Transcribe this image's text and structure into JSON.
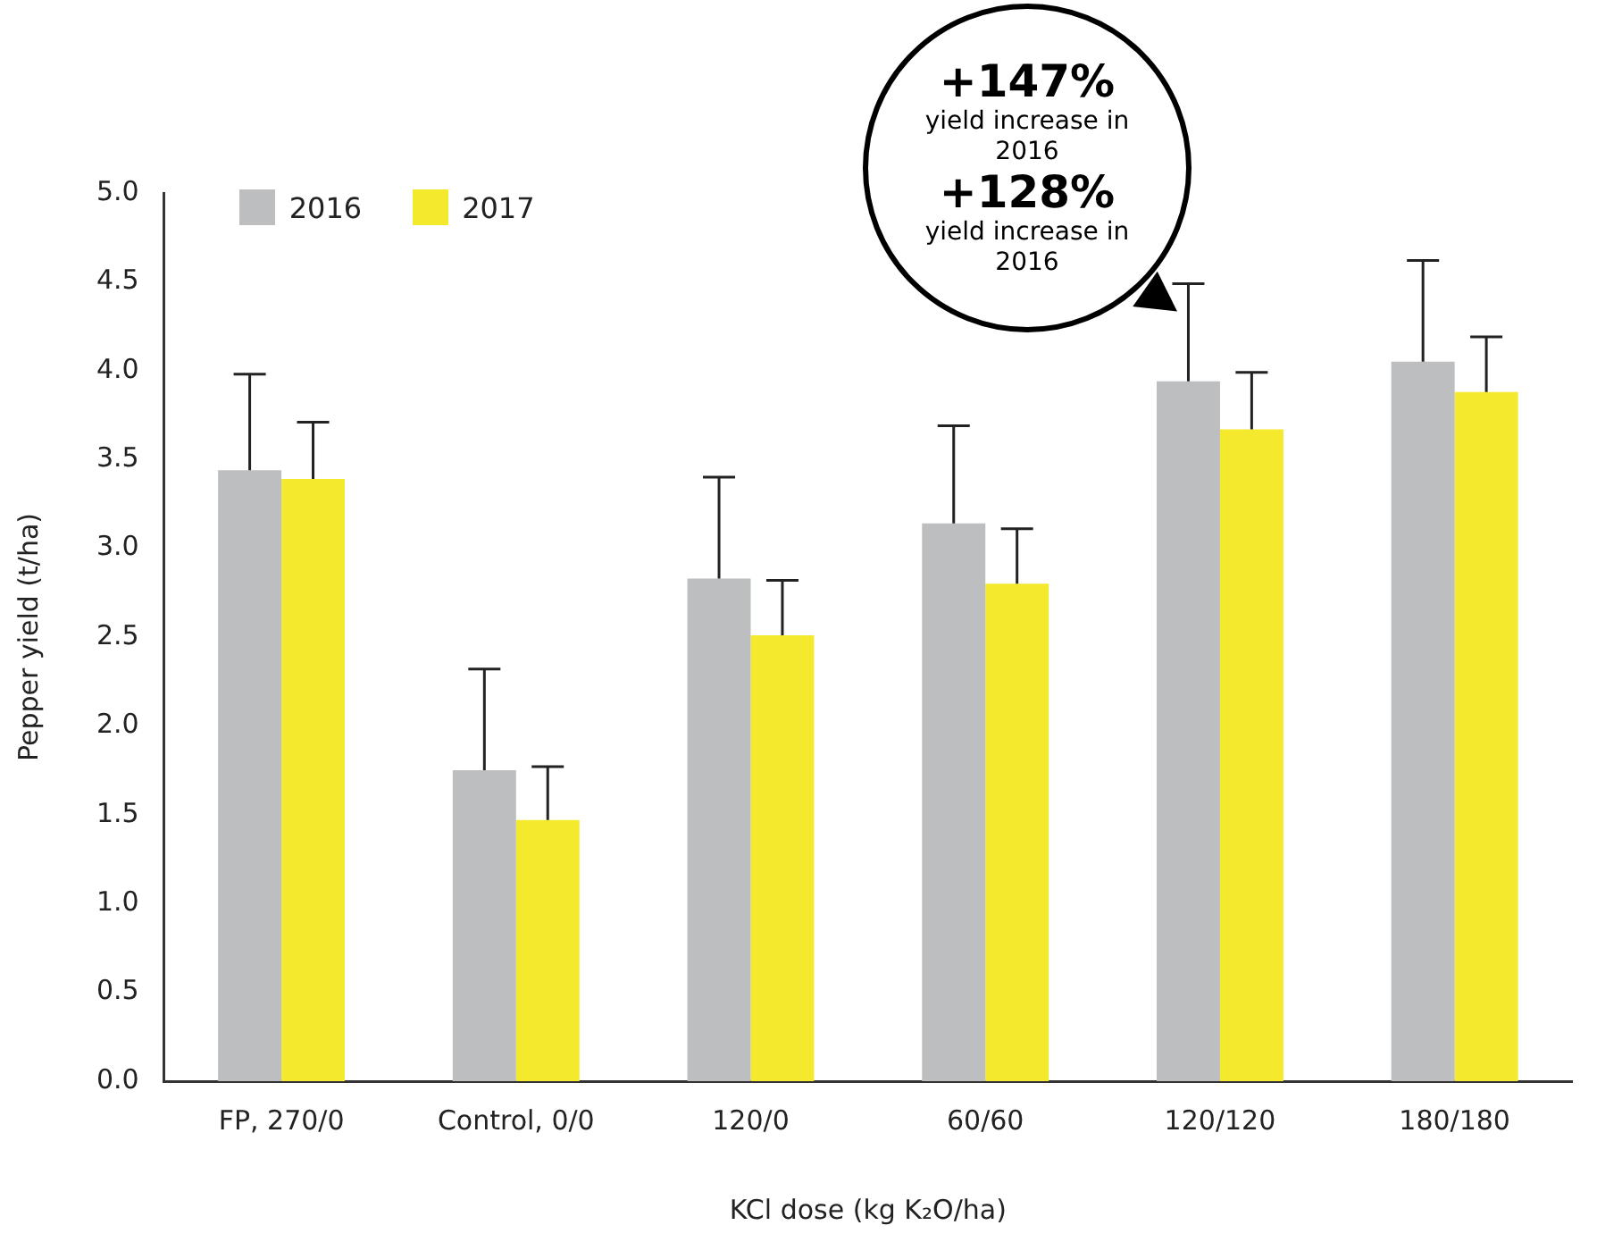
{
  "chart_data": {
    "type": "bar",
    "xlabel": "KCl dose (kg K₂O/ha)",
    "ylabel": "Pepper yield (t/ha)",
    "categories": [
      "FP, 270/0",
      "Control, 0/0",
      "120/0",
      "60/60",
      "120/120",
      "180/180"
    ],
    "series": [
      {
        "name": "2016",
        "color": "#bdbec0",
        "values": [
          3.44,
          1.75,
          2.83,
          3.14,
          3.94,
          4.05
        ],
        "errors": [
          [
            3.44,
            3.98
          ],
          [
            1.75,
            2.32
          ],
          [
            2.83,
            3.4
          ],
          [
            3.14,
            3.69
          ],
          [
            3.94,
            4.49
          ],
          [
            4.05,
            4.62
          ]
        ]
      },
      {
        "name": "2017",
        "color": "#f5e92e",
        "values": [
          3.39,
          1.47,
          2.51,
          2.8,
          3.67,
          3.88
        ],
        "errors": [
          [
            3.39,
            3.71
          ],
          [
            1.47,
            1.77
          ],
          [
            2.51,
            2.82
          ],
          [
            2.8,
            3.11
          ],
          [
            3.67,
            3.99
          ],
          [
            3.88,
            4.19
          ]
        ]
      }
    ],
    "ylim": [
      0,
      5
    ],
    "yticks": [
      {
        "value": 0,
        "label": "0.0"
      },
      {
        "value": 0.5,
        "label": "0.5"
      },
      {
        "value": 1,
        "label": "1.0"
      },
      {
        "value": 1.5,
        "label": "1.5"
      },
      {
        "value": 2,
        "label": "2.0"
      },
      {
        "value": 2.5,
        "label": "2.5"
      },
      {
        "value": 3,
        "label": "3.0"
      },
      {
        "value": 3.5,
        "label": "3.5"
      },
      {
        "value": 4,
        "label": "4.0"
      },
      {
        "value": 4.5,
        "label": "4.5"
      },
      {
        "value": 5,
        "label": "5.0"
      }
    ],
    "grid": false,
    "legend": "top left",
    "annotations": [
      "+147%",
      "yield increase in 2016",
      "+128%",
      "yield increase in 2016"
    ]
  }
}
